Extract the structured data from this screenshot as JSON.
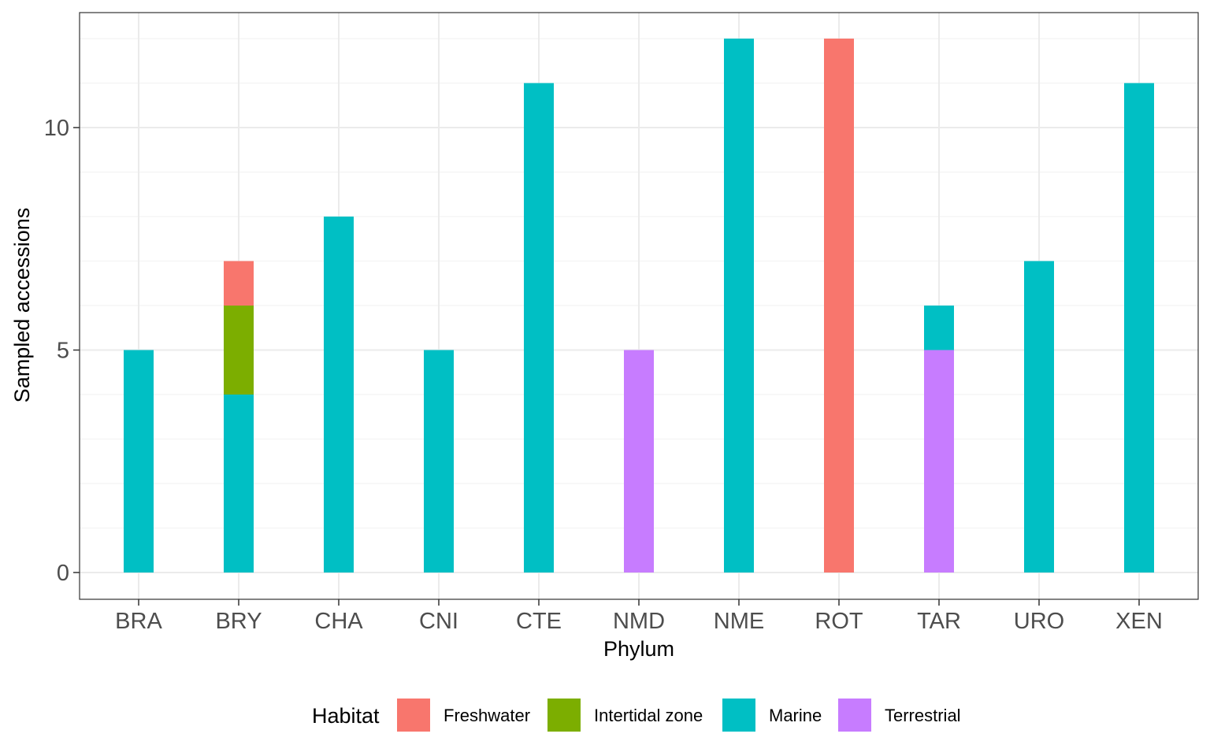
{
  "chart_data": {
    "type": "bar",
    "stacked": true,
    "xlabel": "Phylum",
    "ylabel": "Sampled accessions",
    "ylim": [
      0,
      12
    ],
    "yticks": [
      0,
      5,
      10
    ],
    "grid": true,
    "legend_title": "Habitat",
    "legend_position": "bottom",
    "categories": [
      "BRA",
      "BRY",
      "CHA",
      "CNI",
      "CTE",
      "NMD",
      "NME",
      "ROT",
      "TAR",
      "URO",
      "XEN"
    ],
    "series": [
      {
        "name": "Marine",
        "color": "#00BFC4",
        "values": [
          5,
          4,
          8,
          5,
          11,
          0,
          12,
          0,
          1,
          7,
          11
        ]
      },
      {
        "name": "Intertidal zone",
        "color": "#7CAE00",
        "values": [
          0,
          2,
          0,
          0,
          0,
          0,
          0,
          0,
          0,
          0,
          0
        ]
      },
      {
        "name": "Freshwater",
        "color": "#F8766D",
        "values": [
          0,
          1,
          0,
          0,
          0,
          0,
          0,
          12,
          0,
          0,
          0
        ]
      },
      {
        "name": "Terrestrial",
        "color": "#C77CFF",
        "values": [
          0,
          0,
          0,
          0,
          0,
          5,
          0,
          0,
          5,
          0,
          0
        ]
      }
    ],
    "stack_order": [
      "Terrestrial",
      "Marine",
      "Intertidal zone",
      "Freshwater"
    ],
    "legend_order": [
      "Freshwater",
      "Intertidal zone",
      "Marine",
      "Terrestrial"
    ]
  }
}
